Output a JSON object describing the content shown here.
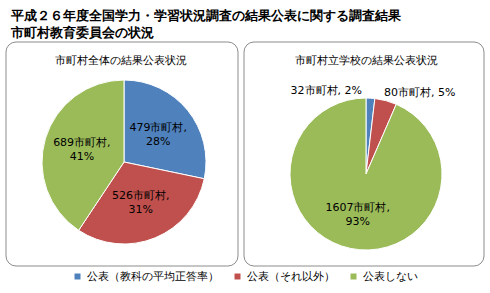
{
  "title": "平成２６年度全国学力・学習状況調査の結果公表に関する調査結果\n市町村教育委員会の状況",
  "legend": "bottom",
  "chart_data": [
    {
      "type": "pie",
      "title": "市町村全体の結果公表状況",
      "categories": [
        "公表（教科の平均正答率）",
        "公表（それ以外）",
        "公表しない"
      ],
      "values": [
        479,
        526,
        689
      ],
      "value_labels": [
        "479市町村,\n28%",
        "526市町村,\n31%",
        "689市町村,\n41%"
      ],
      "colors": [
        "#4f81bd",
        "#c0504d",
        "#9bbb59"
      ],
      "data_labels": true
    },
    {
      "type": "pie",
      "title": "市町村立学校の結果公表状況",
      "categories": [
        "公表（教科の平均正答率）",
        "公表（それ以外）",
        "公表しない"
      ],
      "values": [
        32,
        80,
        1607
      ],
      "value_labels": [
        "32市町村, 2%",
        "80市町村, 5%",
        "1607市町村,\n93%"
      ],
      "colors": [
        "#4f81bd",
        "#c0504d",
        "#9bbb59"
      ],
      "data_labels": true
    }
  ]
}
